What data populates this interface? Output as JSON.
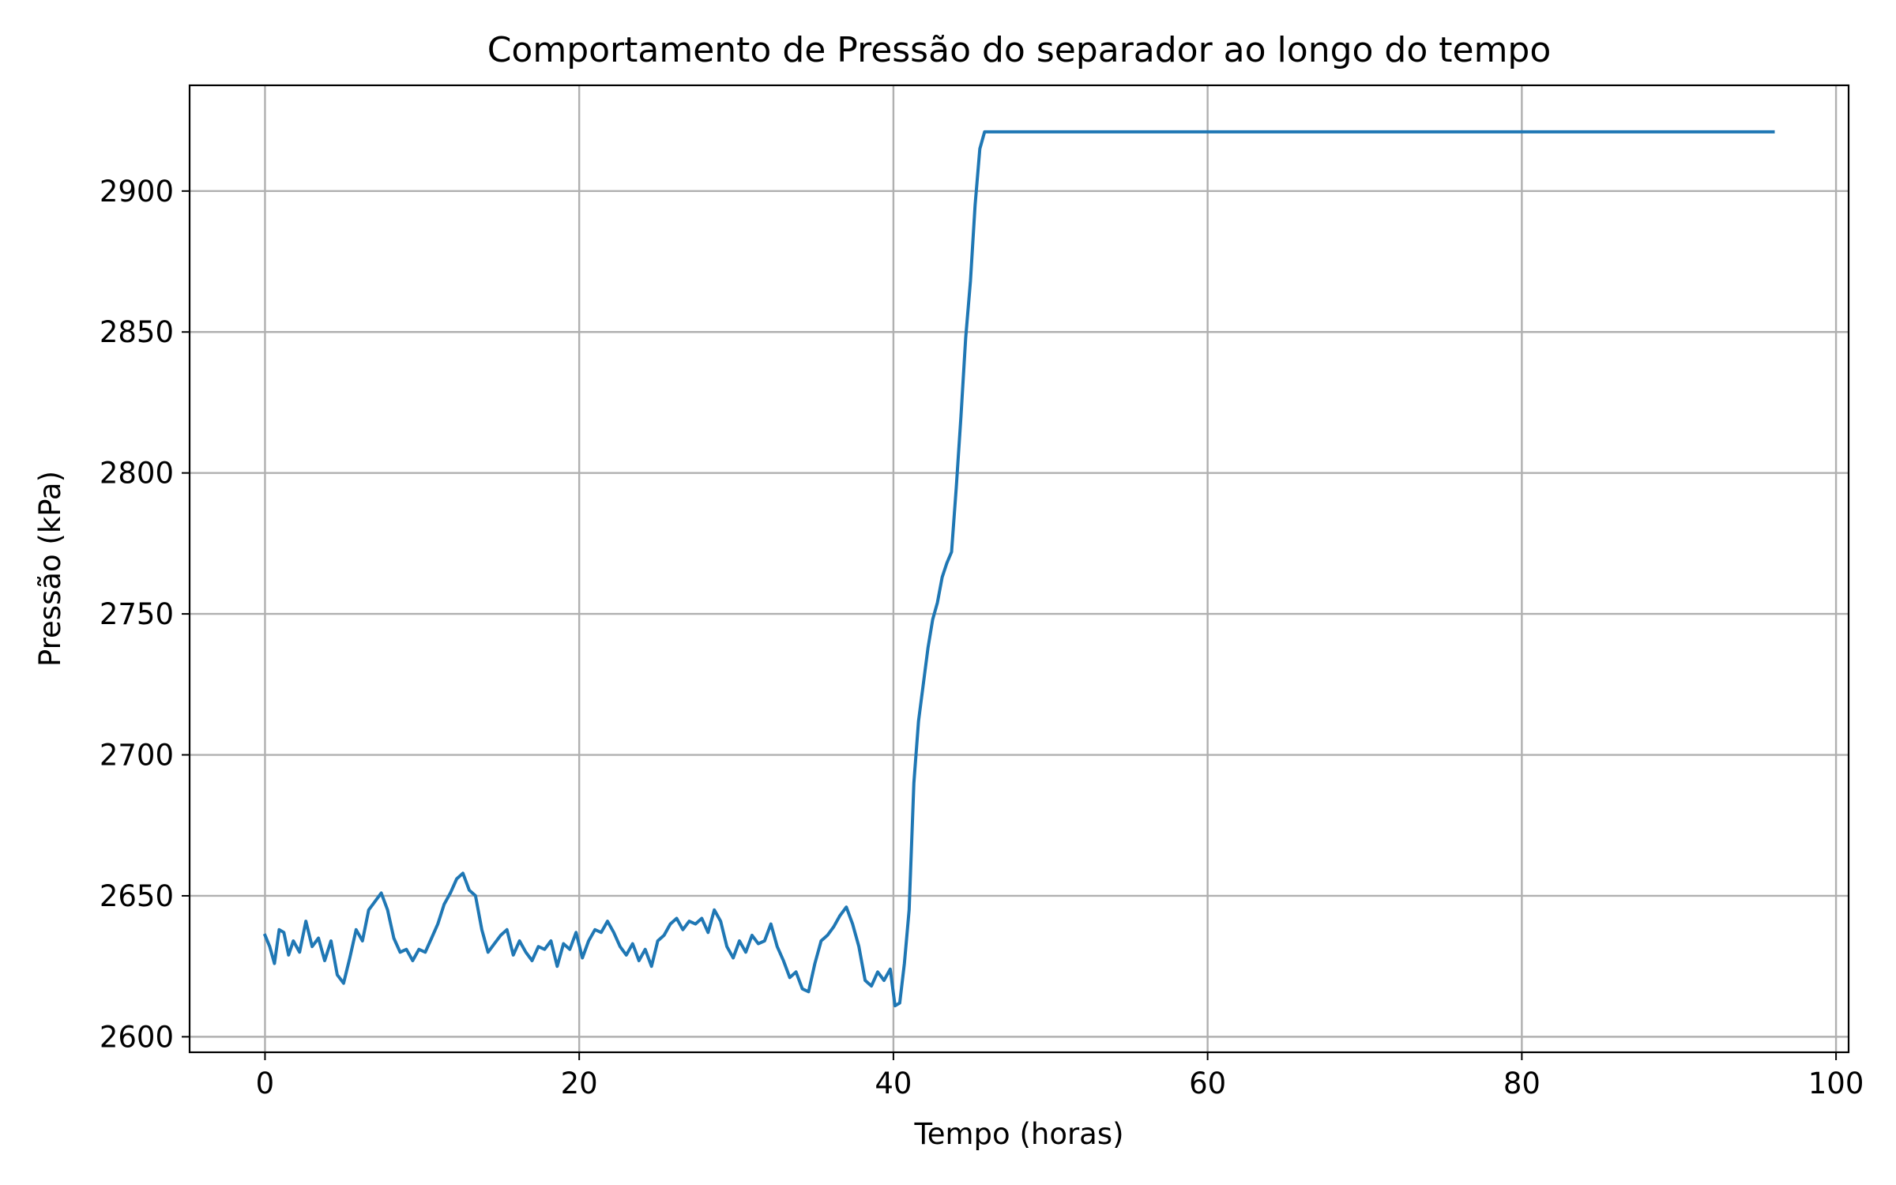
{
  "chart_data": {
    "type": "line",
    "title": "Comportamento de Pressão do separador ao longo do tempo",
    "xlabel": "Tempo (horas)",
    "ylabel": "Pressão (kPa)",
    "xlim": [
      -4.8,
      100.8
    ],
    "ylim": [
      2594.5,
      2937.5
    ],
    "xticks": [
      0,
      20,
      40,
      60,
      80,
      100
    ],
    "xtick_labels": [
      "0",
      "20",
      "40",
      "60",
      "80",
      "100"
    ],
    "yticks": [
      2600,
      2650,
      2700,
      2750,
      2800,
      2850,
      2900
    ],
    "ytick_labels": [
      "2600",
      "2650",
      "2700",
      "2750",
      "2800",
      "2850",
      "2900"
    ],
    "grid": true,
    "legend": "none",
    "series": [
      {
        "color": "#1f77b4",
        "x": [
          0,
          0.3,
          0.6,
          0.9,
          1.2,
          1.5,
          1.8,
          2.2,
          2.6,
          3.0,
          3.4,
          3.8,
          4.2,
          4.6,
          5.0,
          5.4,
          5.8,
          6.2,
          6.6,
          7.0,
          7.4,
          7.8,
          8.2,
          8.6,
          9.0,
          9.4,
          9.8,
          10.2,
          10.6,
          11.0,
          11.4,
          11.8,
          12.2,
          12.6,
          13.0,
          13.4,
          13.8,
          14.2,
          14.6,
          15.0,
          15.4,
          15.8,
          16.2,
          16.6,
          17.0,
          17.4,
          17.8,
          18.2,
          18.6,
          19.0,
          19.4,
          19.8,
          20.2,
          20.6,
          21.0,
          21.4,
          21.8,
          22.2,
          22.6,
          23.0,
          23.4,
          23.8,
          24.2,
          24.6,
          25.0,
          25.4,
          25.8,
          26.2,
          26.6,
          27.0,
          27.4,
          27.8,
          28.2,
          28.6,
          29.0,
          29.4,
          29.8,
          30.2,
          30.6,
          31.0,
          31.4,
          31.8,
          32.2,
          32.6,
          33.0,
          33.4,
          33.8,
          34.2,
          34.6,
          35.0,
          35.4,
          35.8,
          36.2,
          36.6,
          37.0,
          37.4,
          37.8,
          38.2,
          38.6,
          39.0,
          39.4,
          39.8,
          40.1,
          40.4,
          40.7,
          41.0,
          41.3,
          41.6,
          41.9,
          42.2,
          42.5,
          42.8,
          43.1,
          43.4,
          43.7,
          44.0,
          44.3,
          44.6,
          44.9,
          45.2,
          45.5,
          45.8,
          46.0,
          50,
          60,
          70,
          80,
          90,
          96
        ],
        "y": [
          2636,
          2632,
          2626,
          2638,
          2637,
          2629,
          2634,
          2630,
          2641,
          2632,
          2635,
          2627,
          2634,
          2622,
          2619,
          2628,
          2638,
          2634,
          2645,
          2648,
          2651,
          2645,
          2635,
          2630,
          2631,
          2627,
          2631,
          2630,
          2635,
          2640,
          2647,
          2651,
          2656,
          2658,
          2652,
          2650,
          2638,
          2630,
          2633,
          2636,
          2638,
          2629,
          2634,
          2630,
          2627,
          2632,
          2631,
          2634,
          2625,
          2633,
          2631,
          2637,
          2628,
          2634,
          2638,
          2637,
          2641,
          2637,
          2632,
          2629,
          2633,
          2627,
          2631,
          2625,
          2634,
          2636,
          2640,
          2642,
          2638,
          2641,
          2640,
          2642,
          2637,
          2645,
          2641,
          2632,
          2628,
          2634,
          2630,
          2636,
          2633,
          2634,
          2640,
          2632,
          2627,
          2621,
          2623,
          2617,
          2616,
          2626,
          2634,
          2636,
          2639,
          2643,
          2646,
          2640,
          2632,
          2620,
          2618,
          2623,
          2620,
          2624,
          2611,
          2612,
          2626,
          2645,
          2690,
          2712,
          2725,
          2738,
          2748,
          2754,
          2763,
          2768,
          2772,
          2795,
          2820,
          2848,
          2868,
          2895,
          2915,
          2921,
          2921,
          2921,
          2921,
          2921,
          2921,
          2921,
          2921
        ]
      }
    ]
  }
}
